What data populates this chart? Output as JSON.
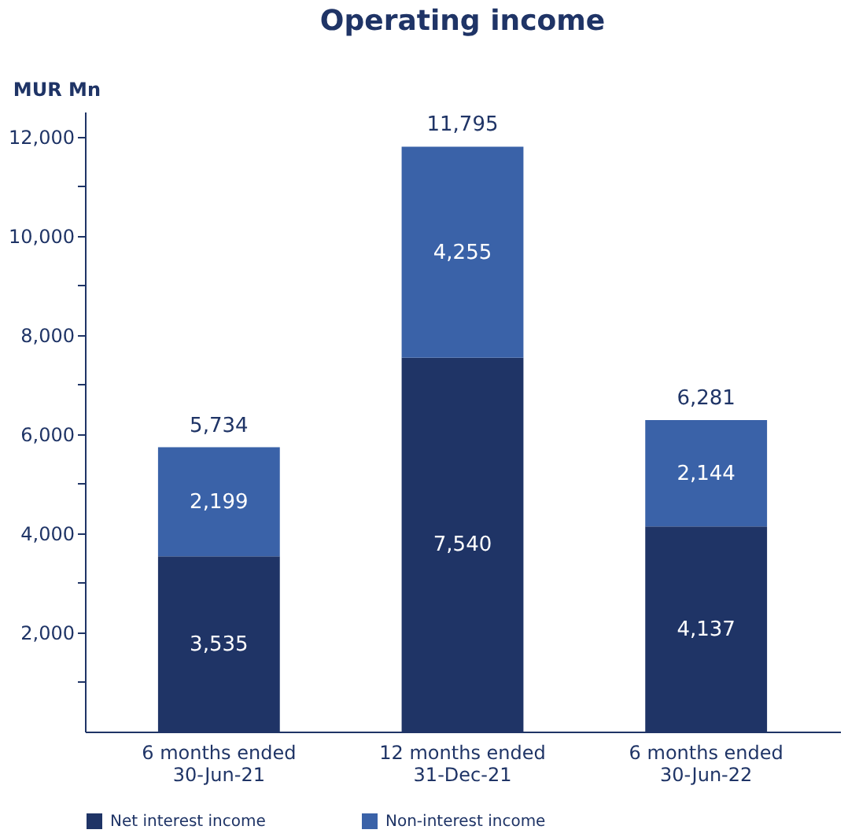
{
  "chart_data": {
    "type": "bar",
    "title": "Operating income",
    "ylabel": "MUR Mn",
    "categories": [
      "6 months ended\n30-Jun-21",
      "12 months ended\n31-Dec-21",
      "6 months ended\n30-Jun-22"
    ],
    "series": [
      {
        "name": "Net interest income",
        "color": "#1f3466",
        "values": [
          3535,
          7540,
          4137
        ],
        "value_labels": [
          "3,535",
          "7,540",
          "4,137"
        ]
      },
      {
        "name": "Non-interest income",
        "color": "#3a62a8",
        "values": [
          2199,
          4255,
          2144
        ],
        "value_labels": [
          "2,199",
          "4,255",
          "2,144"
        ]
      }
    ],
    "stacked": true,
    "data_labels": true,
    "totals": [
      "5,734",
      "11,795",
      "6,281"
    ],
    "ylim": [
      0,
      12500
    ],
    "yticks": [
      {
        "value": 1000,
        "label": null
      },
      {
        "value": 2000,
        "label": "2,000"
      },
      {
        "value": 3000,
        "label": null
      },
      {
        "value": 4000,
        "label": "4,000"
      },
      {
        "value": 5000,
        "label": null
      },
      {
        "value": 6000,
        "label": "6,000"
      },
      {
        "value": 7000,
        "label": null
      },
      {
        "value": 8000,
        "label": "8,000"
      },
      {
        "value": 9000,
        "label": null
      },
      {
        "value": 10000,
        "label": "10,000"
      },
      {
        "value": 11000,
        "label": null
      },
      {
        "value": 12000,
        "label": "12,000"
      }
    ],
    "grid": false,
    "legend": "bottom"
  }
}
